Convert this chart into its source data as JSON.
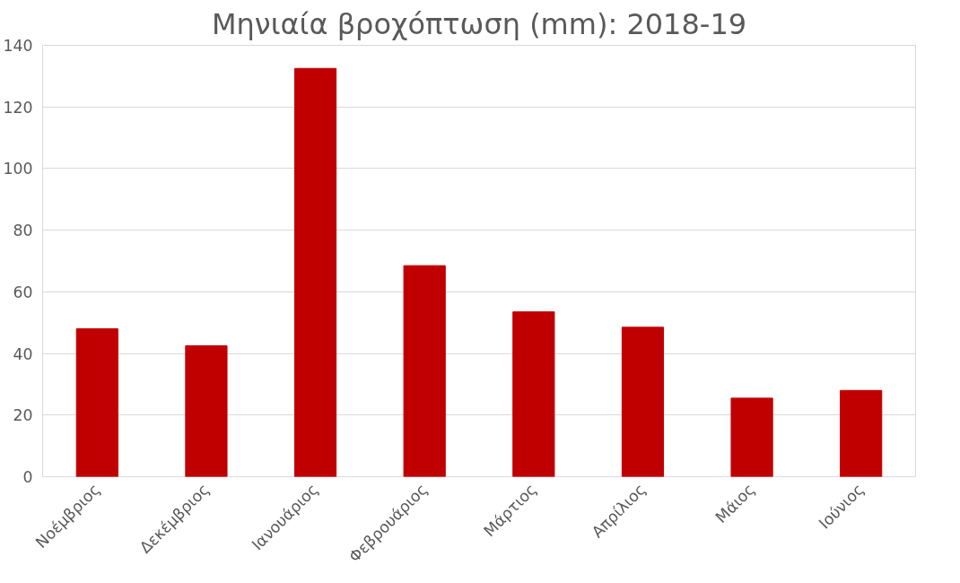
{
  "chart_data": {
    "type": "bar",
    "title": "Μηνιαία βροχόπτωση (mm): 2018-19",
    "categories": [
      "Νοέμβριος",
      "Δεκέμβριος",
      "Ιανουάριος",
      "Φεβρουάριος",
      "Μάρτιος",
      "Απρίλιος",
      "Μάιος",
      "Ιούνιος"
    ],
    "values": [
      48,
      42.5,
      132.5,
      68.5,
      53.5,
      48.5,
      25.5,
      28
    ],
    "color": "#c00000",
    "ylim": [
      0,
      140
    ],
    "yticks": [
      0,
      20,
      40,
      60,
      80,
      100,
      120,
      140
    ],
    "grid": "y"
  }
}
